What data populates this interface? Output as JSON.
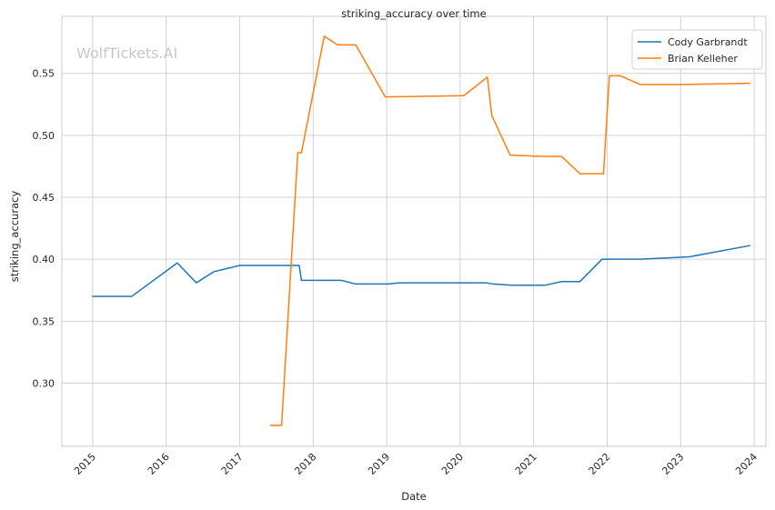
{
  "chart_data": {
    "type": "line",
    "title": "striking_accuracy over time",
    "xlabel": "Date",
    "ylabel": "striking_accuracy",
    "watermark": "WolfTickets.AI",
    "x_ticks": [
      "2015",
      "2016",
      "2017",
      "2018",
      "2019",
      "2020",
      "2021",
      "2022",
      "2023",
      "2024"
    ],
    "y_ticks": [
      "0.30",
      "0.35",
      "0.40",
      "0.45",
      "0.50",
      "0.55"
    ],
    "xlim": [
      2014.58,
      2024.16
    ],
    "ylim": [
      0.249,
      0.596
    ],
    "grid": true,
    "legend_position": "top-right",
    "series": [
      {
        "name": "Cody Garbrandt",
        "color": "#1f77b4",
        "points": [
          [
            2015.0,
            0.37
          ],
          [
            2015.53,
            0.37
          ],
          [
            2016.15,
            0.397
          ],
          [
            2016.41,
            0.381
          ],
          [
            2016.65,
            0.39
          ],
          [
            2017.0,
            0.395
          ],
          [
            2017.81,
            0.395
          ],
          [
            2017.84,
            0.383
          ],
          [
            2018.38,
            0.383
          ],
          [
            2018.58,
            0.38
          ],
          [
            2019.02,
            0.38
          ],
          [
            2019.17,
            0.381
          ],
          [
            2020.35,
            0.381
          ],
          [
            2020.45,
            0.38
          ],
          [
            2020.7,
            0.379
          ],
          [
            2021.15,
            0.379
          ],
          [
            2021.38,
            0.382
          ],
          [
            2021.63,
            0.382
          ],
          [
            2021.93,
            0.4
          ],
          [
            2022.45,
            0.4
          ],
          [
            2023.12,
            0.402
          ],
          [
            2023.94,
            0.411
          ]
        ]
      },
      {
        "name": "Brian Kelleher",
        "color": "#ff7f0e",
        "points": [
          [
            2017.42,
            0.266
          ],
          [
            2017.57,
            0.266
          ],
          [
            2017.79,
            0.486
          ],
          [
            2017.84,
            0.486
          ],
          [
            2018.15,
            0.58
          ],
          [
            2018.33,
            0.573
          ],
          [
            2018.58,
            0.573
          ],
          [
            2018.98,
            0.531
          ],
          [
            2020.05,
            0.532
          ],
          [
            2020.37,
            0.547
          ],
          [
            2020.43,
            0.516
          ],
          [
            2020.68,
            0.484
          ],
          [
            2021.1,
            0.483
          ],
          [
            2021.38,
            0.483
          ],
          [
            2021.63,
            0.469
          ],
          [
            2021.95,
            0.469
          ],
          [
            2022.03,
            0.548
          ],
          [
            2022.18,
            0.548
          ],
          [
            2022.45,
            0.541
          ],
          [
            2023.0,
            0.541
          ],
          [
            2023.94,
            0.542
          ]
        ]
      }
    ]
  }
}
